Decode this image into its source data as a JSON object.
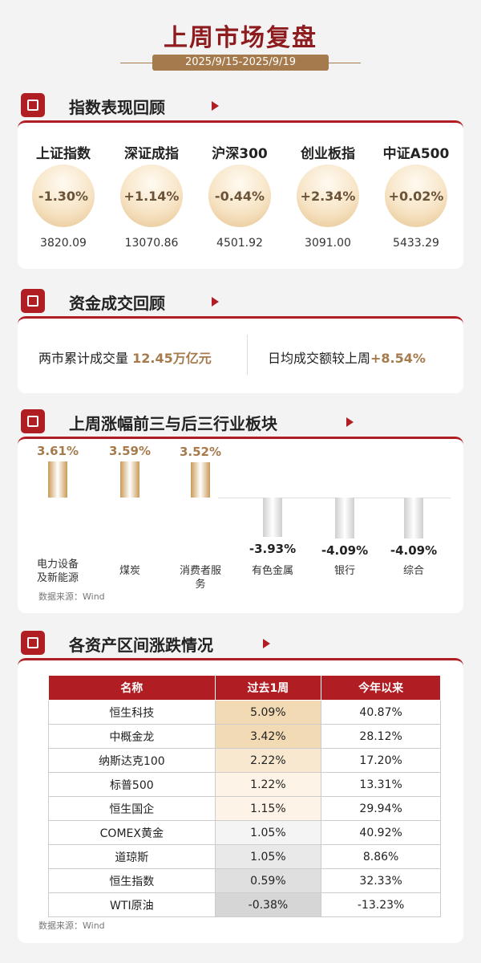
{
  "header": {
    "title": "上周市场复盘",
    "date_range": "2025/9/15-2025/9/19"
  },
  "indices": {
    "title": "指数表现回顾",
    "items": [
      {
        "name": "上证指数",
        "change": "-1.30%",
        "close": "3820.09"
      },
      {
        "name": "深证成指",
        "change": "+1.14%",
        "close": "13070.86"
      },
      {
        "name": "沪深300",
        "change": "-0.44%",
        "close": "4501.92"
      },
      {
        "name": "创业板指",
        "change": "+2.34%",
        "close": "3091.00"
      },
      {
        "name": "中证A500",
        "change": "+0.02%",
        "close": "5433.29"
      }
    ]
  },
  "turnover": {
    "title": "资金成交回顾",
    "total_label": "两市累计成交量",
    "total_value": "12.45万亿元",
    "daily_label": "日均成交额较上周",
    "daily_value": "+8.54%"
  },
  "sectors": {
    "title": "上周涨幅前三与后三行业板块",
    "source": "数据来源：Wind"
  },
  "chart_data": {
    "type": "bar",
    "categories": [
      "电力设备及新能源",
      "煤炭",
      "消费者服务",
      "有色金属",
      "银行",
      "综合"
    ],
    "values": [
      3.61,
      3.59,
      3.52,
      -3.93,
      -4.09,
      -4.09
    ],
    "value_labels": [
      "3.61%",
      "3.59%",
      "3.52%",
      "-3.93%",
      "-4.09%",
      "-4.09%"
    ],
    "color_up": "#c99a58",
    "color_down": "#cfcfcf"
  },
  "assets": {
    "title": "各资产区间涨跌情况",
    "table": {
      "columns": [
        "名称",
        "过去1周",
        "今年以来"
      ],
      "rows": [
        [
          "恒生科技",
          "5.09%",
          "40.87%"
        ],
        [
          "中概金龙",
          "3.42%",
          "28.12%"
        ],
        [
          "纳斯达克100",
          "2.22%",
          "17.20%"
        ],
        [
          "标普500",
          "1.22%",
          "13.31%"
        ],
        [
          "恒生国企",
          "1.15%",
          "29.94%"
        ],
        [
          "COMEX黄金",
          "1.05%",
          "40.92%"
        ],
        [
          "道琼斯",
          "1.05%",
          "8.86%"
        ],
        [
          "恒生指数",
          "0.59%",
          "32.33%"
        ],
        [
          "WTI原油",
          "-0.38%",
          "-13.23%"
        ]
      ]
    },
    "source": "数据来源：Wind"
  }
}
